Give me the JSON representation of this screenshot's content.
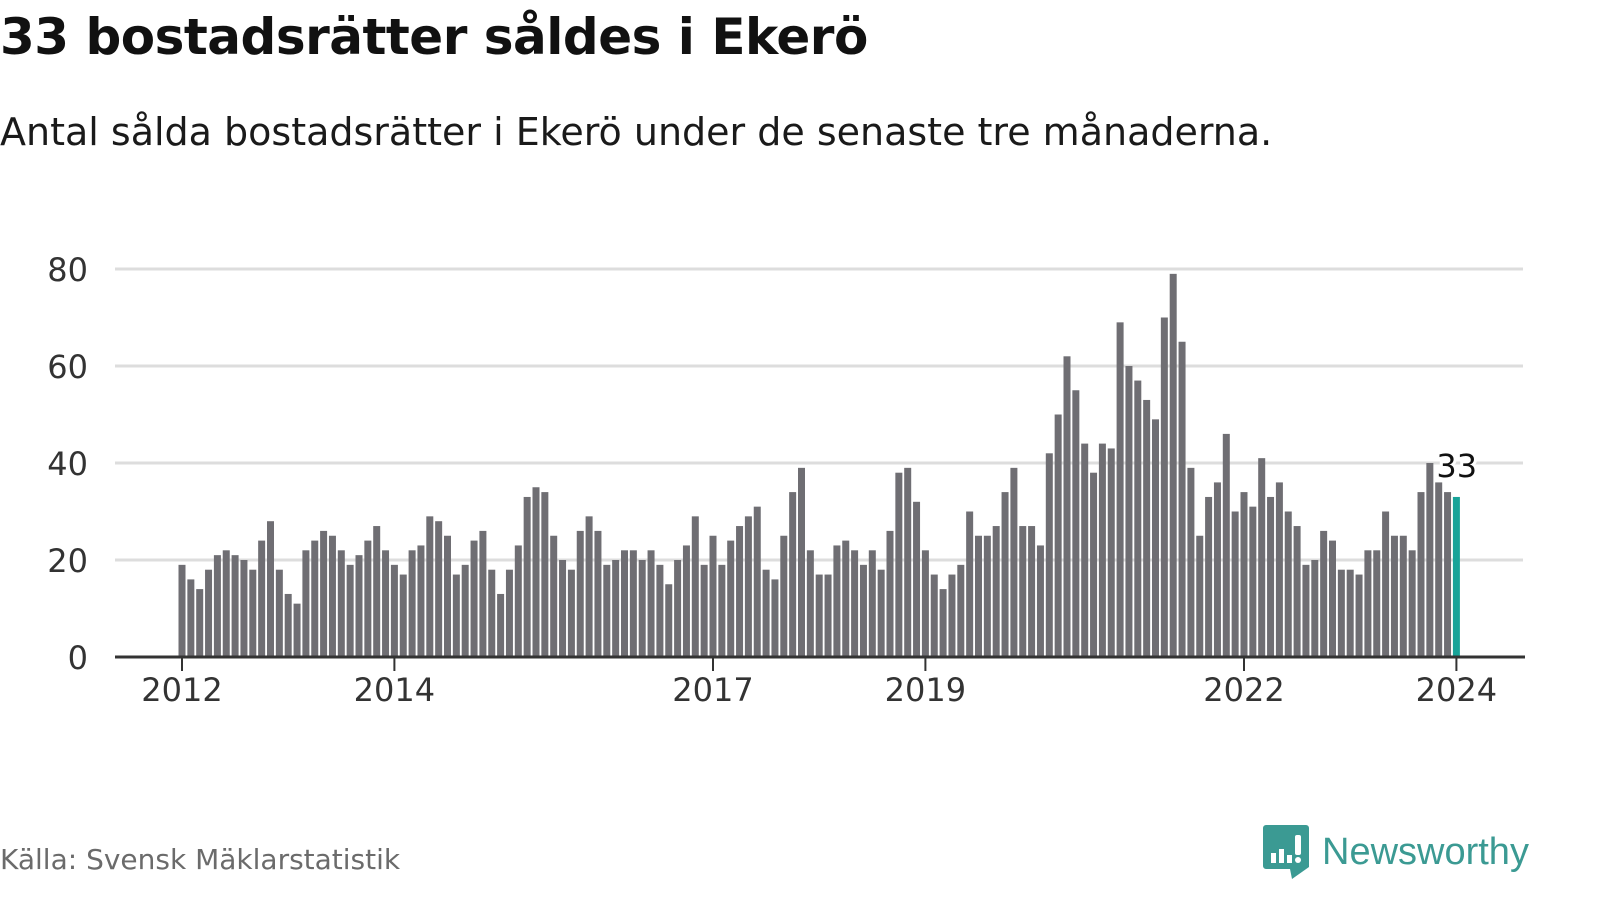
{
  "header": {
    "title": "33 bostadsrätter såldes i Ekerö",
    "subtitle": "Antal sålda bostadsrätter i Ekerö under de senaste tre månaderna."
  },
  "footer": {
    "source": "Källa: Svensk Mäklarstatistik",
    "logo_text": "Newsworthy"
  },
  "colors": {
    "bar": "#6f6e73",
    "highlight": "#17a398",
    "grid": "#dddddd",
    "axis": "#333333",
    "brand": "#3b9a93"
  },
  "chart_data": {
    "type": "bar",
    "title": "33 bostadsrätter såldes i Ekerö",
    "xlabel": "",
    "ylabel": "",
    "ylim": [
      0,
      80
    ],
    "yticks": [
      0,
      20,
      40,
      60,
      80
    ],
    "grid": true,
    "xticks": [
      {
        "label": "2012",
        "month": "2012-01"
      },
      {
        "label": "2014",
        "month": "2014-01"
      },
      {
        "label": "2017",
        "month": "2017-01"
      },
      {
        "label": "2019",
        "month": "2019-01"
      },
      {
        "label": "2022",
        "month": "2022-01"
      },
      {
        "label": "2024",
        "month": "2024-01"
      }
    ],
    "start_month": "2012-01",
    "values": [
      19,
      16,
      14,
      18,
      21,
      22,
      21,
      20,
      18,
      24,
      28,
      18,
      13,
      11,
      22,
      24,
      26,
      25,
      22,
      19,
      21,
      24,
      27,
      22,
      19,
      17,
      22,
      23,
      29,
      28,
      25,
      17,
      19,
      24,
      26,
      18,
      13,
      18,
      23,
      33,
      35,
      34,
      25,
      20,
      18,
      26,
      29,
      26,
      19,
      20,
      22,
      22,
      20,
      22,
      19,
      15,
      20,
      23,
      29,
      19,
      25,
      19,
      24,
      27,
      29,
      31,
      18,
      16,
      25,
      34,
      39,
      22,
      17,
      17,
      23,
      24,
      22,
      19,
      22,
      18,
      26,
      38,
      39,
      32,
      22,
      17,
      14,
      17,
      19,
      30,
      25,
      25,
      27,
      34,
      39,
      27,
      27,
      23,
      42,
      50,
      62,
      55,
      44,
      38,
      44,
      43,
      69,
      60,
      57,
      53,
      49,
      70,
      79,
      65,
      39,
      25,
      33,
      36,
      46,
      30,
      34,
      31,
      41,
      33,
      36,
      30,
      27,
      19,
      20,
      26,
      24,
      18,
      18,
      17,
      22,
      22,
      30,
      25,
      25,
      22,
      34,
      40,
      36,
      34,
      33
    ],
    "highlight_last": true,
    "annotation": {
      "text": "33",
      "target": "last"
    }
  }
}
